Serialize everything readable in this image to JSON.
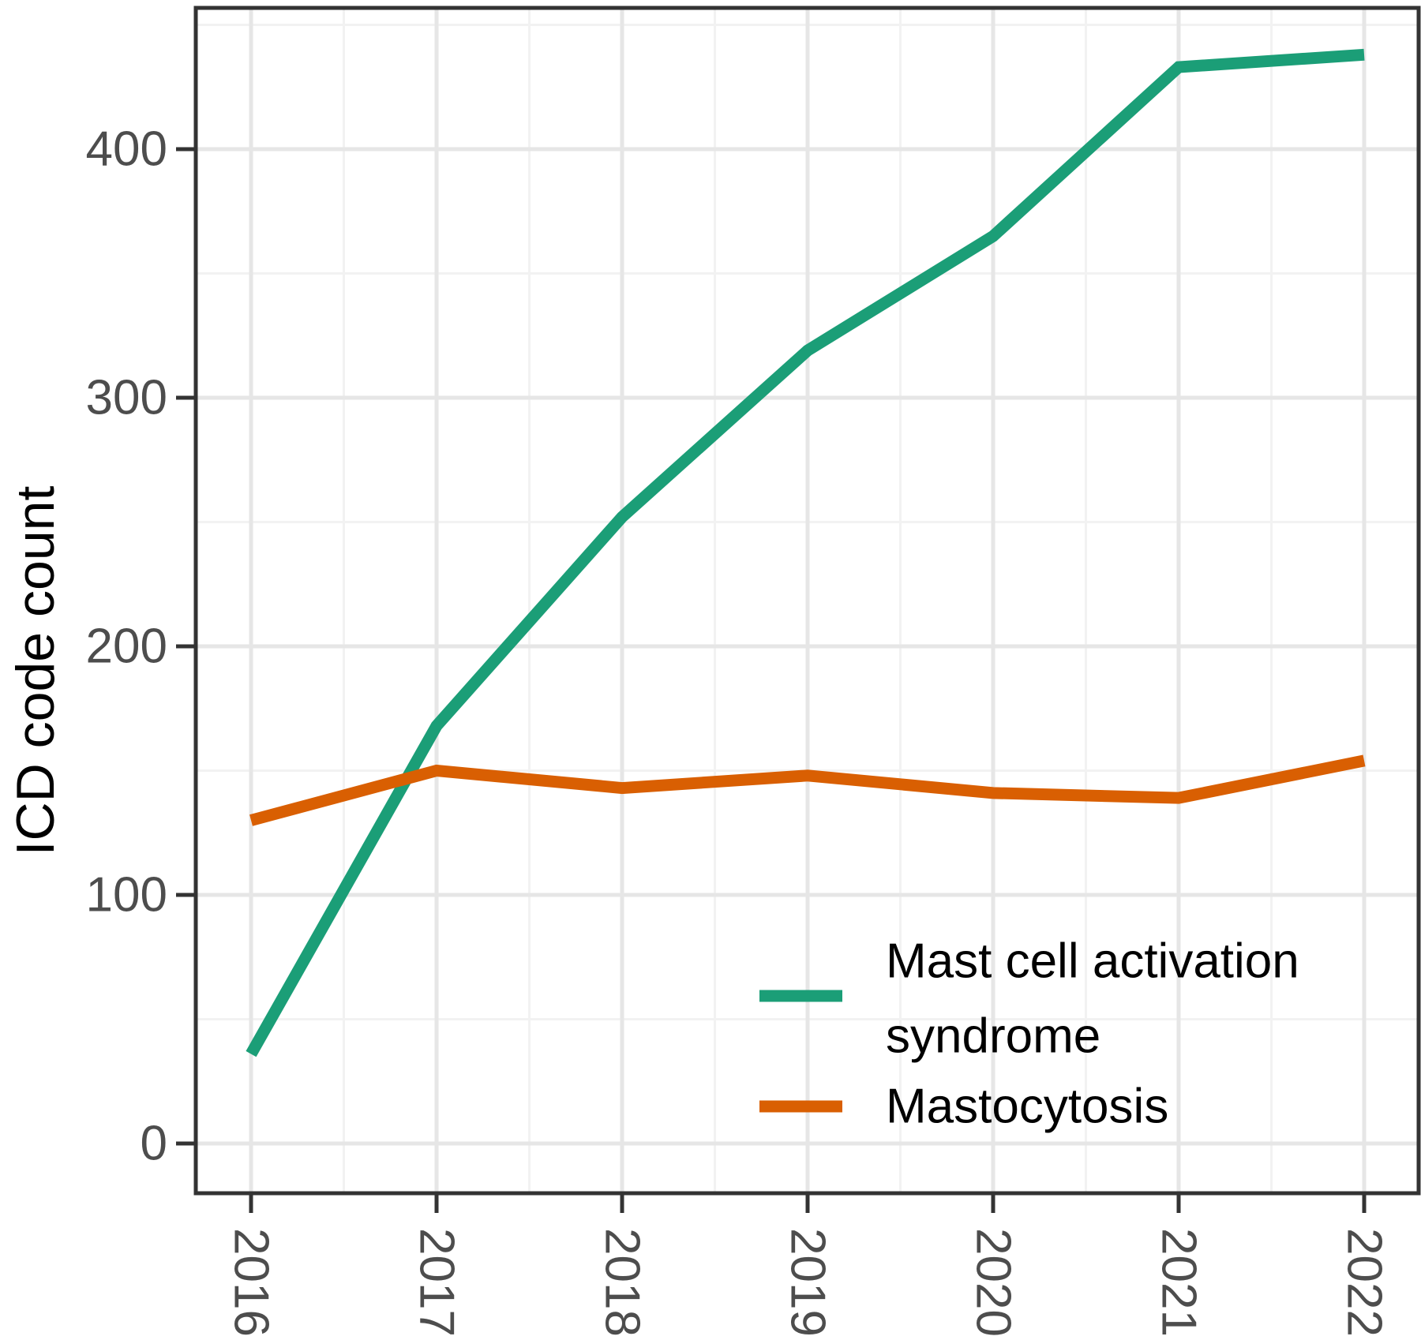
{
  "chart_data": {
    "type": "line",
    "title": "",
    "xlabel": "",
    "ylabel": "ICD code count",
    "x": [
      2016,
      2017,
      2018,
      2019,
      2020,
      2021,
      2022
    ],
    "series": [
      {
        "name": "Mast cell activation syndrome",
        "color": "#1b9e77",
        "values": [
          36,
          168,
          252,
          319,
          365,
          433,
          438
        ]
      },
      {
        "name": "Mastocytosis",
        "color": "#d95f02",
        "values": [
          130,
          150,
          143,
          148,
          141,
          139,
          154
        ]
      }
    ],
    "ylim": [
      0,
      465
    ],
    "y_major_ticks": [
      0,
      100,
      200,
      300,
      400
    ],
    "y_minor_ticks": [
      50,
      150,
      250,
      350,
      450
    ],
    "grid": "major and minor, light gray on white panel",
    "legend_position": "inside bottom-right"
  },
  "axis": {
    "y_tick_labels": [
      "0",
      "100",
      "200",
      "300",
      "400"
    ],
    "x_tick_labels": [
      "2016",
      "2017",
      "2018",
      "2019",
      "2020",
      "2021",
      "2022"
    ]
  },
  "legend": {
    "lines": [
      "Mast cell activation",
      "syndrome",
      "Mastocytosis"
    ]
  },
  "colors": {
    "mcas_line": "#1b9e77",
    "mastocytosis_line": "#d95f02",
    "panel_border": "#333333",
    "tick_mark": "#333333",
    "tick_label": "#4d4d4d",
    "grid_major": "#e6e6e6",
    "grid_minor": "#f2f2f2",
    "background": "#ffffff"
  }
}
